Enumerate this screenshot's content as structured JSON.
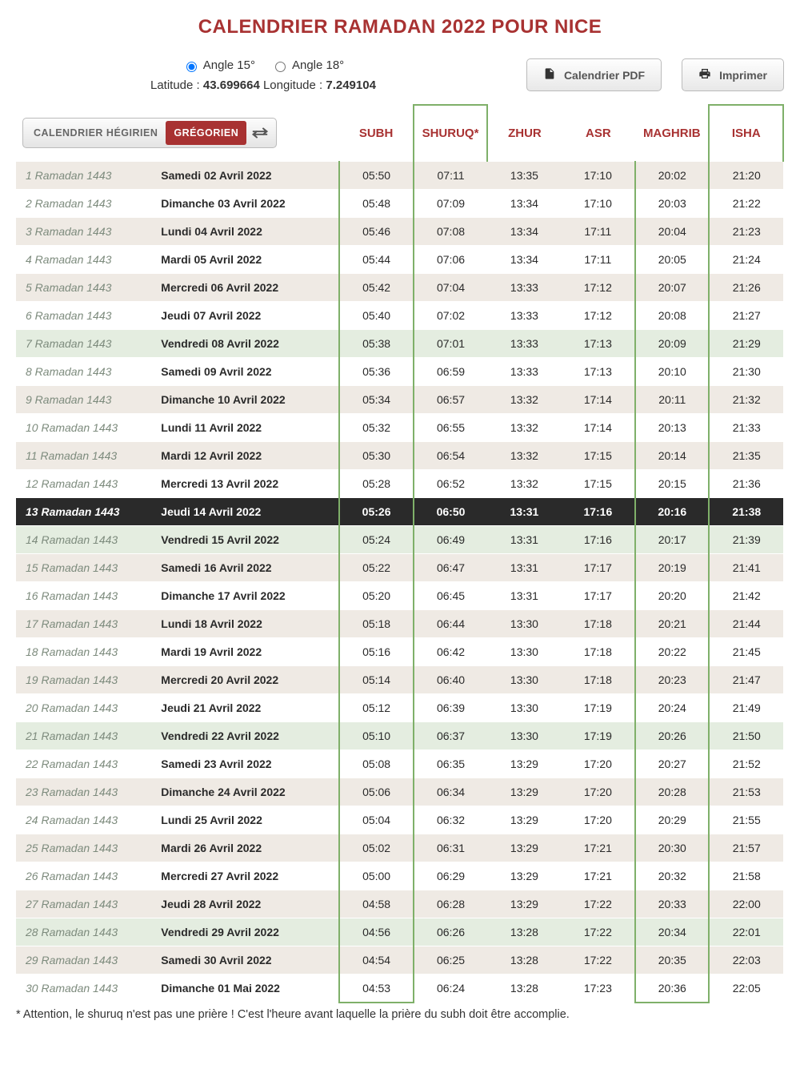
{
  "title": "CALENDRIER RAMADAN 2022 POUR NICE",
  "angles": {
    "opt1": "Angle 15°",
    "opt2": "Angle 18°",
    "selected": 1
  },
  "coords": {
    "lat_label": "Latitude :",
    "lat_val": "43.699664",
    "lon_label": "Longitude :",
    "lon_val": "7.249104"
  },
  "buttons": {
    "pdf": "Calendrier PDF",
    "print": "Imprimer"
  },
  "tabs": {
    "hijri": "CALENDRIER HÉGIRIEN",
    "greg": "GRÉGORIEN"
  },
  "columns": [
    "SUBH",
    "SHURUQ*",
    "ZHUR",
    "ASR",
    "MAGHRIB",
    "ISHA"
  ],
  "colors": {
    "accent": "#a83232",
    "highlight_border": "#7fb069",
    "row_odd": "#efeae4",
    "row_even": "#ffffff",
    "row_friday": "#e4ede0",
    "row_today_bg": "#2a2a2a",
    "row_today_text": "#ffffff",
    "hijri_text": "#7d8b7d"
  },
  "today_index": 12,
  "rows": [
    {
      "hijri": "1 Ramadan 1443",
      "greg": "Samedi 02 Avril 2022",
      "t": [
        "05:50",
        "07:11",
        "13:35",
        "17:10",
        "20:02",
        "21:20"
      ],
      "fri": false
    },
    {
      "hijri": "2 Ramadan 1443",
      "greg": "Dimanche 03 Avril 2022",
      "t": [
        "05:48",
        "07:09",
        "13:34",
        "17:10",
        "20:03",
        "21:22"
      ],
      "fri": false
    },
    {
      "hijri": "3 Ramadan 1443",
      "greg": "Lundi 04 Avril 2022",
      "t": [
        "05:46",
        "07:08",
        "13:34",
        "17:11",
        "20:04",
        "21:23"
      ],
      "fri": false
    },
    {
      "hijri": "4 Ramadan 1443",
      "greg": "Mardi 05 Avril 2022",
      "t": [
        "05:44",
        "07:06",
        "13:34",
        "17:11",
        "20:05",
        "21:24"
      ],
      "fri": false
    },
    {
      "hijri": "5 Ramadan 1443",
      "greg": "Mercredi 06 Avril 2022",
      "t": [
        "05:42",
        "07:04",
        "13:33",
        "17:12",
        "20:07",
        "21:26"
      ],
      "fri": false
    },
    {
      "hijri": "6 Ramadan 1443",
      "greg": "Jeudi 07 Avril 2022",
      "t": [
        "05:40",
        "07:02",
        "13:33",
        "17:12",
        "20:08",
        "21:27"
      ],
      "fri": false
    },
    {
      "hijri": "7 Ramadan 1443",
      "greg": "Vendredi 08 Avril 2022",
      "t": [
        "05:38",
        "07:01",
        "13:33",
        "17:13",
        "20:09",
        "21:29"
      ],
      "fri": true
    },
    {
      "hijri": "8 Ramadan 1443",
      "greg": "Samedi 09 Avril 2022",
      "t": [
        "05:36",
        "06:59",
        "13:33",
        "17:13",
        "20:10",
        "21:30"
      ],
      "fri": false
    },
    {
      "hijri": "9 Ramadan 1443",
      "greg": "Dimanche 10 Avril 2022",
      "t": [
        "05:34",
        "06:57",
        "13:32",
        "17:14",
        "20:11",
        "21:32"
      ],
      "fri": false
    },
    {
      "hijri": "10 Ramadan 1443",
      "greg": "Lundi 11 Avril 2022",
      "t": [
        "05:32",
        "06:55",
        "13:32",
        "17:14",
        "20:13",
        "21:33"
      ],
      "fri": false
    },
    {
      "hijri": "11 Ramadan 1443",
      "greg": "Mardi 12 Avril 2022",
      "t": [
        "05:30",
        "06:54",
        "13:32",
        "17:15",
        "20:14",
        "21:35"
      ],
      "fri": false
    },
    {
      "hijri": "12 Ramadan 1443",
      "greg": "Mercredi 13 Avril 2022",
      "t": [
        "05:28",
        "06:52",
        "13:32",
        "17:15",
        "20:15",
        "21:36"
      ],
      "fri": false
    },
    {
      "hijri": "13 Ramadan 1443",
      "greg": "Jeudi 14 Avril 2022",
      "t": [
        "05:26",
        "06:50",
        "13:31",
        "17:16",
        "20:16",
        "21:38"
      ],
      "fri": false
    },
    {
      "hijri": "14 Ramadan 1443",
      "greg": "Vendredi 15 Avril 2022",
      "t": [
        "05:24",
        "06:49",
        "13:31",
        "17:16",
        "20:17",
        "21:39"
      ],
      "fri": true
    },
    {
      "hijri": "15 Ramadan 1443",
      "greg": "Samedi 16 Avril 2022",
      "t": [
        "05:22",
        "06:47",
        "13:31",
        "17:17",
        "20:19",
        "21:41"
      ],
      "fri": false
    },
    {
      "hijri": "16 Ramadan 1443",
      "greg": "Dimanche 17 Avril 2022",
      "t": [
        "05:20",
        "06:45",
        "13:31",
        "17:17",
        "20:20",
        "21:42"
      ],
      "fri": false
    },
    {
      "hijri": "17 Ramadan 1443",
      "greg": "Lundi 18 Avril 2022",
      "t": [
        "05:18",
        "06:44",
        "13:30",
        "17:18",
        "20:21",
        "21:44"
      ],
      "fri": false
    },
    {
      "hijri": "18 Ramadan 1443",
      "greg": "Mardi 19 Avril 2022",
      "t": [
        "05:16",
        "06:42",
        "13:30",
        "17:18",
        "20:22",
        "21:45"
      ],
      "fri": false
    },
    {
      "hijri": "19 Ramadan 1443",
      "greg": "Mercredi 20 Avril 2022",
      "t": [
        "05:14",
        "06:40",
        "13:30",
        "17:18",
        "20:23",
        "21:47"
      ],
      "fri": false
    },
    {
      "hijri": "20 Ramadan 1443",
      "greg": "Jeudi 21 Avril 2022",
      "t": [
        "05:12",
        "06:39",
        "13:30",
        "17:19",
        "20:24",
        "21:49"
      ],
      "fri": false
    },
    {
      "hijri": "21 Ramadan 1443",
      "greg": "Vendredi 22 Avril 2022",
      "t": [
        "05:10",
        "06:37",
        "13:30",
        "17:19",
        "20:26",
        "21:50"
      ],
      "fri": true
    },
    {
      "hijri": "22 Ramadan 1443",
      "greg": "Samedi 23 Avril 2022",
      "t": [
        "05:08",
        "06:35",
        "13:29",
        "17:20",
        "20:27",
        "21:52"
      ],
      "fri": false
    },
    {
      "hijri": "23 Ramadan 1443",
      "greg": "Dimanche 24 Avril 2022",
      "t": [
        "05:06",
        "06:34",
        "13:29",
        "17:20",
        "20:28",
        "21:53"
      ],
      "fri": false
    },
    {
      "hijri": "24 Ramadan 1443",
      "greg": "Lundi 25 Avril 2022",
      "t": [
        "05:04",
        "06:32",
        "13:29",
        "17:20",
        "20:29",
        "21:55"
      ],
      "fri": false
    },
    {
      "hijri": "25 Ramadan 1443",
      "greg": "Mardi 26 Avril 2022",
      "t": [
        "05:02",
        "06:31",
        "13:29",
        "17:21",
        "20:30",
        "21:57"
      ],
      "fri": false
    },
    {
      "hijri": "26 Ramadan 1443",
      "greg": "Mercredi 27 Avril 2022",
      "t": [
        "05:00",
        "06:29",
        "13:29",
        "17:21",
        "20:32",
        "21:58"
      ],
      "fri": false
    },
    {
      "hijri": "27 Ramadan 1443",
      "greg": "Jeudi 28 Avril 2022",
      "t": [
        "04:58",
        "06:28",
        "13:29",
        "17:22",
        "20:33",
        "22:00"
      ],
      "fri": false
    },
    {
      "hijri": "28 Ramadan 1443",
      "greg": "Vendredi 29 Avril 2022",
      "t": [
        "04:56",
        "06:26",
        "13:28",
        "17:22",
        "20:34",
        "22:01"
      ],
      "fri": true
    },
    {
      "hijri": "29 Ramadan 1443",
      "greg": "Samedi 30 Avril 2022",
      "t": [
        "04:54",
        "06:25",
        "13:28",
        "17:22",
        "20:35",
        "22:03"
      ],
      "fri": false
    },
    {
      "hijri": "30 Ramadan 1443",
      "greg": "Dimanche 01 Mai 2022",
      "t": [
        "04:53",
        "06:24",
        "13:28",
        "17:23",
        "20:36",
        "22:05"
      ],
      "fri": false
    }
  ],
  "footnote": "* Attention, le shuruq n'est pas une prière ! C'est l'heure avant laquelle la prière du subh doit être accomplie."
}
